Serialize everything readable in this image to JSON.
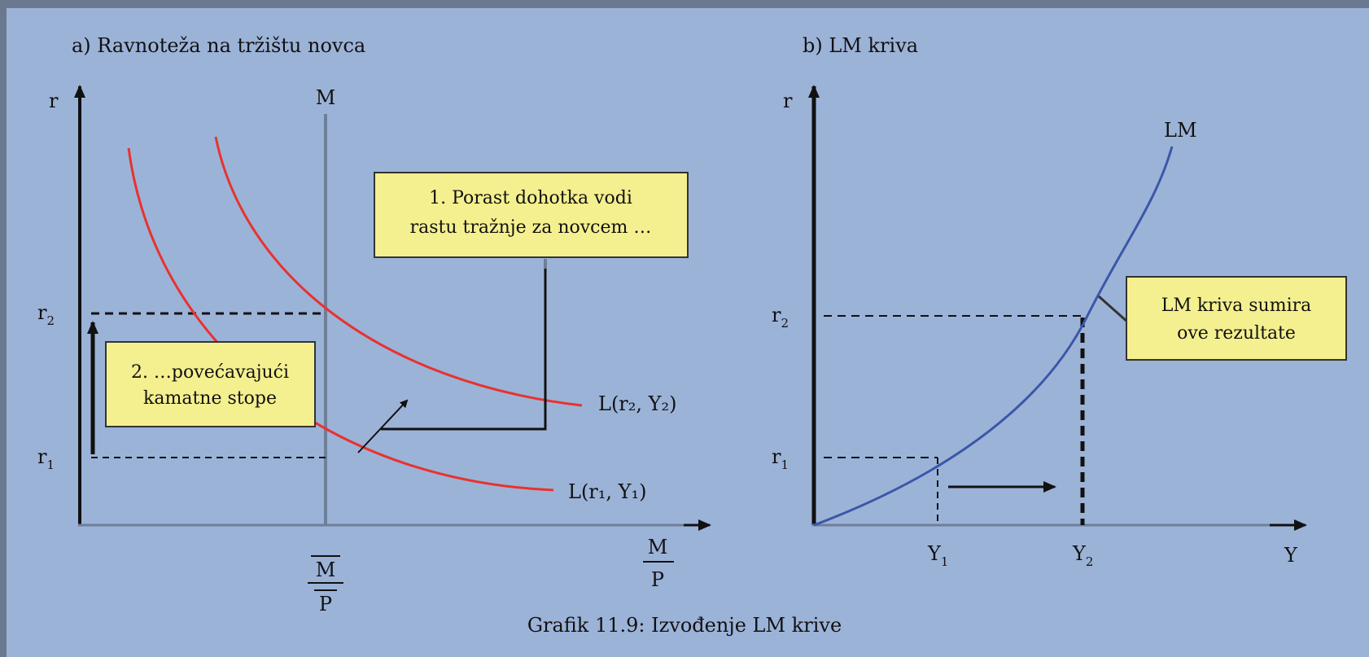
{
  "figure": {
    "caption": "Grafik 11.9: Izvođenje LM krive",
    "colors": {
      "background": "#9cb3d8",
      "frame": "#6a7890",
      "axis": "#111111",
      "money_supply_line": "#6e7f99",
      "demand_curve": "#e8322e",
      "lm_curve": "#3a57a8",
      "callout_fill": "#f5f08f",
      "callout_border": "#333333"
    }
  },
  "panel_a": {
    "title": "a) Ravnoteža na tržištu novca",
    "y_axis_label": "r",
    "x_axis_label_numerator": "M",
    "x_axis_label_denominator": "P",
    "supply_label": "M",
    "supply_tick_numerator": "M",
    "supply_tick_denominator": "P",
    "r2_label": "r",
    "r2_sub": "2",
    "r1_label": "r",
    "r1_sub": "1",
    "curve_high_label": "L(r₂, Y₂)",
    "curve_low_label": "L(r₁, Y₁)",
    "callout_1_line1": "1. Porast dohotka vodi",
    "callout_1_line2": "rastu tražnje za novcem …",
    "callout_2_line1": "2. …povećavajući",
    "callout_2_line2": "kamatne stope"
  },
  "panel_b": {
    "title": "b) LM kriva",
    "y_axis_label": "r",
    "x_axis_label": "Y",
    "curve_label": "LM",
    "r2_label": "r",
    "r2_sub": "2",
    "r1_label": "r",
    "r1_sub": "1",
    "y1_label": "Y",
    "y1_sub": "1",
    "y2_label": "Y",
    "y2_sub": "2",
    "callout_line1": "LM kriva sumira",
    "callout_line2": "ove rezultate"
  }
}
